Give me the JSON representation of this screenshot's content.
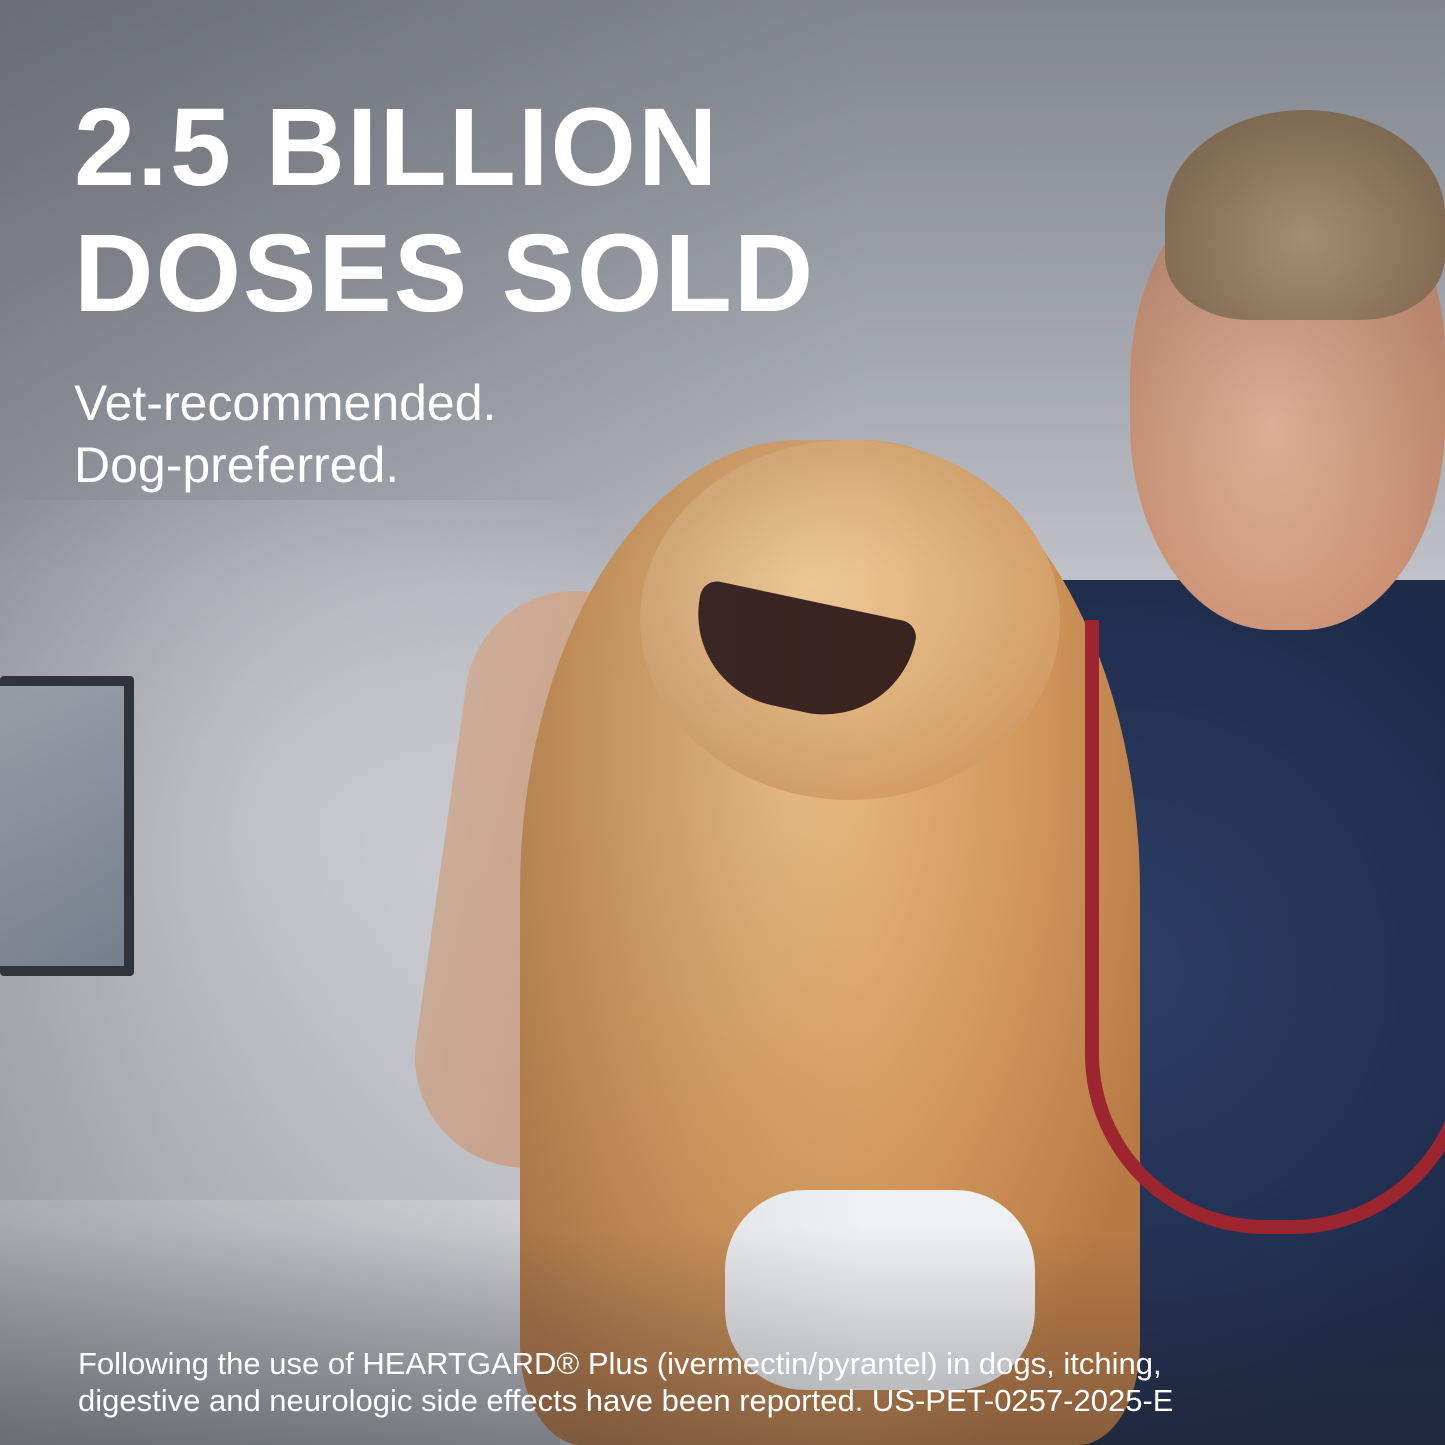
{
  "headline": {
    "line1": "2.5 BILLION",
    "line2": "DOSES SOLD"
  },
  "subheadline": {
    "line1": "Vet-recommended.",
    "line2": "Dog-preferred."
  },
  "disclaimer": {
    "line1": "Following the use of HEARTGARD® Plus (ivermectin/pyrantel) in dogs, itching,",
    "line2": "digestive and neurologic side effects have been reported. US-PET-0257-2025-E"
  },
  "colors": {
    "text": "#ffffff",
    "scrubs": "#1d2a48",
    "stethoscope": "#9c2530",
    "dog_fur": "#d39a5e"
  }
}
